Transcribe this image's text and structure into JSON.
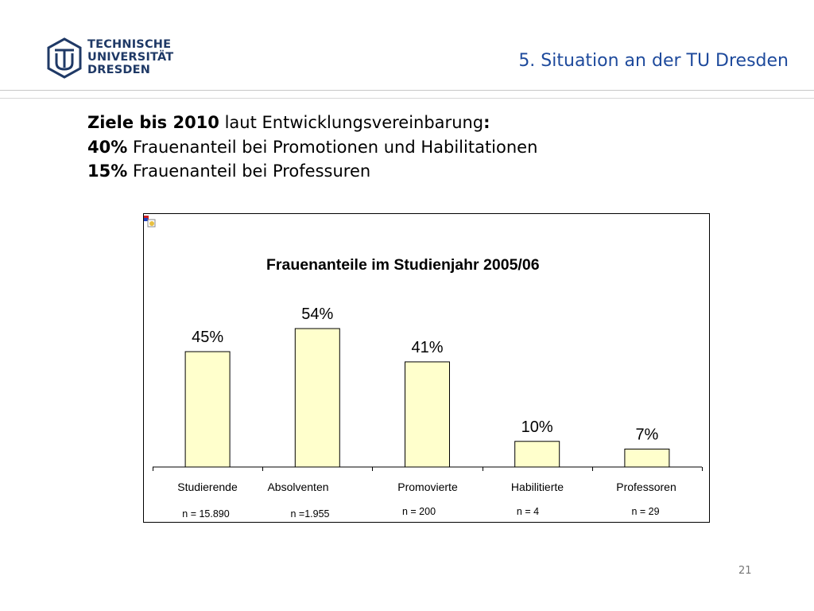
{
  "header": {
    "logo_lines": [
      "TECHNISCHE",
      "UNIVERSITÄT",
      "DRESDEN"
    ],
    "section_title": "5. Situation an der TU Dresden"
  },
  "goals": {
    "line1_bold": "Ziele bis 2010",
    "line1_text": " laut Entwicklungsvereinbarung",
    "line1_colon": ":",
    "line2_bold": "40%",
    "line2_text": " Frauenanteil bei Promotionen und Habilitationen",
    "line3_bold": "15%",
    "line3_text": " Frauenanteil bei Professuren"
  },
  "chart_data": {
    "type": "bar",
    "title": "Frauenanteile im Studienjahr 2005/06",
    "categories": [
      "Studierende",
      "Absolventen",
      "Promovierte",
      "Habilitierte",
      "Professoren"
    ],
    "values": [
      45,
      54,
      41,
      10,
      7
    ],
    "value_labels": [
      "45%",
      "54%",
      "41%",
      "10%",
      "7%"
    ],
    "counts": [
      "n = 15.890",
      "n =1.955",
      "n = 200",
      "n = 4",
      "n = 29"
    ],
    "ylim": [
      0,
      60
    ],
    "grid": false,
    "bar_color": "#ffffcc",
    "bar_stroke": "#000000"
  },
  "footer": {
    "page_number": "21"
  },
  "colors": {
    "accent": "#1e4a9c",
    "logo": "#1f3966"
  }
}
